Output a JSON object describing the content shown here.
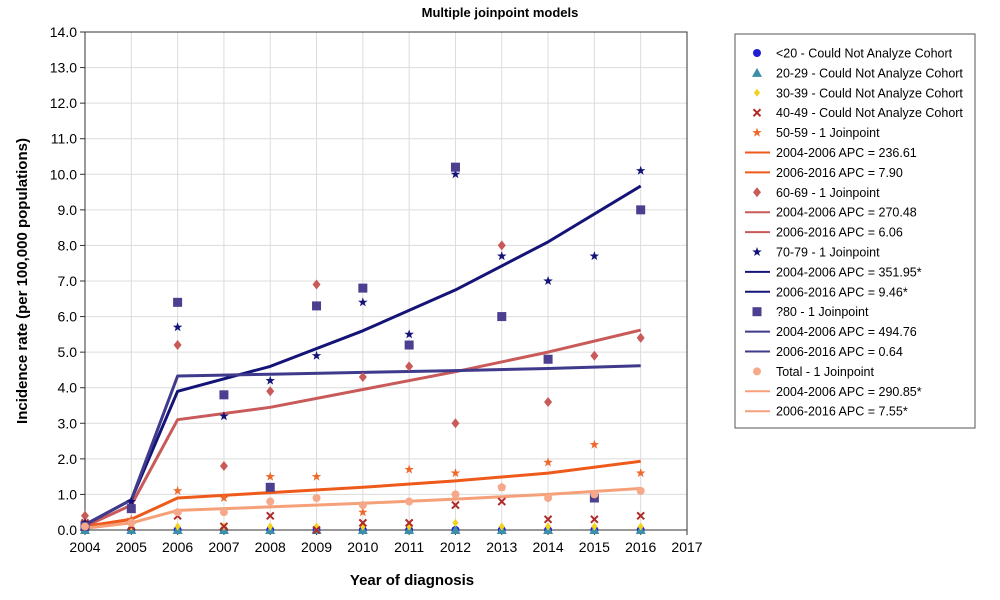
{
  "chart_data": {
    "type": "scatter",
    "title": "Multiple joinpoint models",
    "xlabel": "Year of diagnosis",
    "ylabel": "Incidence rate (per 100,000 populations)",
    "xlim": [
      2004,
      2017
    ],
    "ylim": [
      0,
      14
    ],
    "x_ticks": [
      "2004",
      "2005",
      "2006",
      "2007",
      "2008",
      "2009",
      "2010",
      "2011",
      "2012",
      "2013",
      "2014",
      "2015",
      "2016",
      "2017"
    ],
    "y_ticks": [
      "0.0",
      "1.0",
      "2.0",
      "3.0",
      "4.0",
      "5.0",
      "6.0",
      "7.0",
      "8.0",
      "9.0",
      "10.0",
      "11.0",
      "12.0",
      "13.0",
      "14.0"
    ],
    "grid": true,
    "legend_position": "right",
    "x": [
      2004,
      2005,
      2006,
      2007,
      2008,
      2009,
      2010,
      2011,
      2012,
      2013,
      2014,
      2015,
      2016
    ],
    "series": [
      {
        "name": "<20 - Could Not Analyze Cohort",
        "marker": "circle",
        "color": "#1f1fd6",
        "values": [
          0.0,
          0.0,
          0.0,
          0.0,
          0.0,
          0.0,
          0.0,
          0.0,
          0.0,
          0.0,
          0.0,
          0.0,
          0.0
        ]
      },
      {
        "name": "20-29 - Could Not Analyze Cohort",
        "marker": "triangle",
        "color": "#3d8fa8",
        "values": [
          0.0,
          0.0,
          0.0,
          0.0,
          0.0,
          0.0,
          0.0,
          0.0,
          0.0,
          0.0,
          0.0,
          0.0,
          0.0
        ]
      },
      {
        "name": "30-39 - Could Not Analyze Cohort",
        "marker": "diamond-small",
        "color": "#f2d21a",
        "values": [
          0.1,
          0.1,
          0.1,
          0.1,
          0.1,
          0.1,
          0.1,
          0.1,
          0.2,
          0.1,
          0.1,
          0.1,
          0.1
        ]
      },
      {
        "name": "40-49 - Could Not Analyze Cohort",
        "marker": "x",
        "color": "#b02a2a",
        "values": [
          0.2,
          0.1,
          0.4,
          0.1,
          0.4,
          0.0,
          0.2,
          0.2,
          0.7,
          0.8,
          0.3,
          0.3,
          0.4
        ]
      },
      {
        "name": "50-59 - 1 Joinpoint",
        "marker": "star",
        "color": "#ee6a2c",
        "values": [
          0.2,
          0.3,
          1.1,
          0.9,
          1.5,
          1.5,
          0.5,
          1.7,
          1.6,
          1.2,
          1.9,
          2.4,
          1.6
        ]
      },
      {
        "name": "60-69 - 1 Joinpoint",
        "marker": "diamond",
        "color": "#c95a5a",
        "values": [
          0.4,
          0.7,
          5.2,
          1.8,
          3.9,
          6.9,
          4.3,
          4.6,
          3.0,
          8.0,
          3.6,
          4.9,
          5.4
        ]
      },
      {
        "name": "70-79 - 1 Joinpoint",
        "marker": "star",
        "color": "#141478",
        "values": [
          0.2,
          0.8,
          5.7,
          3.2,
          4.2,
          4.9,
          6.4,
          5.5,
          10.0,
          7.7,
          7.0,
          7.7,
          10.1
        ]
      },
      {
        "name": "?80 - 1 Joinpoint",
        "marker": "square",
        "color": "#4b3f8f",
        "values": [
          0.1,
          0.6,
          6.4,
          3.8,
          1.2,
          6.3,
          6.8,
          5.2,
          10.2,
          6.0,
          4.8,
          0.9,
          9.0
        ]
      },
      {
        "name": "Total - 1 Joinpoint",
        "marker": "circle",
        "color": "#f6a98a",
        "values": [
          0.1,
          0.2,
          0.5,
          0.5,
          0.8,
          0.9,
          0.7,
          0.8,
          1.0,
          1.2,
          0.9,
          1.0,
          1.1
        ]
      }
    ],
    "fitted_lines": [
      {
        "color": "#ee5a1a",
        "x": [
          2004,
          2005,
          2006,
          2008,
          2010,
          2012,
          2014,
          2016
        ],
        "values": [
          0.1,
          0.3,
          0.9,
          1.05,
          1.2,
          1.38,
          1.6,
          1.93
        ]
      },
      {
        "color": "#c95a5a",
        "x": [
          2004,
          2005,
          2006,
          2008,
          2010,
          2012,
          2014,
          2016
        ],
        "values": [
          0.1,
          0.7,
          3.1,
          3.45,
          3.95,
          4.45,
          5.0,
          5.62
        ]
      },
      {
        "color": "#141478",
        "x": [
          2004,
          2005,
          2006,
          2008,
          2010,
          2012,
          2014,
          2016
        ],
        "values": [
          0.15,
          0.85,
          3.9,
          4.6,
          5.6,
          6.75,
          8.1,
          9.67
        ]
      },
      {
        "color": "#3f3a8c",
        "x": [
          2004,
          2005,
          2006,
          2008,
          2010,
          2012,
          2014,
          2016
        ],
        "values": [
          0.15,
          0.85,
          4.33,
          4.38,
          4.43,
          4.48,
          4.54,
          4.62
        ]
      },
      {
        "color": "#f6a07a",
        "x": [
          2004,
          2005,
          2006,
          2008,
          2010,
          2012,
          2014,
          2016
        ],
        "values": [
          0.05,
          0.2,
          0.55,
          0.65,
          0.75,
          0.87,
          1.0,
          1.17
        ]
      }
    ],
    "legend": [
      {
        "kind": "marker",
        "marker": "circle",
        "color": "#1f1fd6",
        "label": "<20 - Could Not Analyze Cohort"
      },
      {
        "kind": "marker",
        "marker": "triangle",
        "color": "#3d8fa8",
        "label": "20-29 - Could Not Analyze Cohort"
      },
      {
        "kind": "marker",
        "marker": "diamond-small",
        "color": "#f2d21a",
        "label": "30-39 - Could Not Analyze Cohort"
      },
      {
        "kind": "marker",
        "marker": "x",
        "color": "#b02a2a",
        "label": "40-49 - Could Not Analyze Cohort"
      },
      {
        "kind": "marker",
        "marker": "star",
        "color": "#ee6a2c",
        "label": "50-59 - 1 Joinpoint"
      },
      {
        "kind": "line",
        "color": "#ee5a1a",
        "label": "2004-2006 APC  = 236.61"
      },
      {
        "kind": "line",
        "color": "#ee5a1a",
        "label": "2006-2016 APC  =   7.90"
      },
      {
        "kind": "marker",
        "marker": "diamond",
        "color": "#c95a5a",
        "label": "60-69 - 1 Joinpoint"
      },
      {
        "kind": "line",
        "color": "#c95a5a",
        "label": "2004-2006 APC  = 270.48"
      },
      {
        "kind": "line",
        "color": "#c95a5a",
        "label": "2006-2016 APC  =   6.06"
      },
      {
        "kind": "marker",
        "marker": "star",
        "color": "#141478",
        "label": "70-79 - 1 Joinpoint"
      },
      {
        "kind": "line",
        "color": "#141478",
        "label": "2004-2006 APC  = 351.95*"
      },
      {
        "kind": "line",
        "color": "#141478",
        "label": "2006-2016 APC  =   9.46*"
      },
      {
        "kind": "marker",
        "marker": "square",
        "color": "#4b3f8f",
        "label": "?80 - 1 Joinpoint"
      },
      {
        "kind": "line",
        "color": "#3f3a8c",
        "label": "2004-2006 APC  = 494.76"
      },
      {
        "kind": "line",
        "color": "#3f3a8c",
        "label": "2006-2016 APC  =   0.64"
      },
      {
        "kind": "marker",
        "marker": "circle",
        "color": "#f6a98a",
        "label": "Total - 1 Joinpoint"
      },
      {
        "kind": "line",
        "color": "#f6a07a",
        "label": "2004-2006 APC  = 290.85*"
      },
      {
        "kind": "line",
        "color": "#f6a07a",
        "label": "2006-2016 APC  =   7.55*"
      }
    ]
  }
}
